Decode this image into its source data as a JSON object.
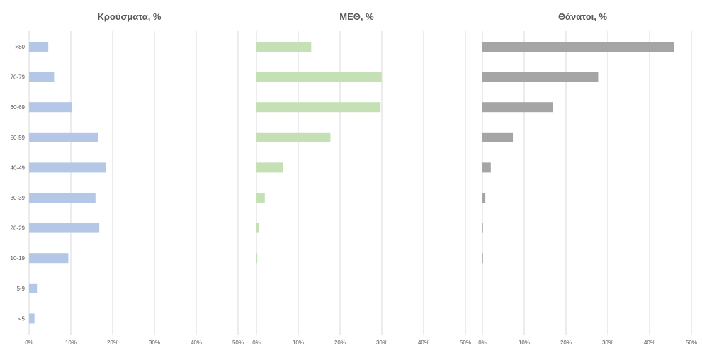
{
  "chart_data": {
    "type": "bar",
    "orientation": "horizontal",
    "categories": [
      ">80",
      "70-79",
      "60-69",
      "50-59",
      "40-49",
      "30-39",
      "20-29",
      "10-19",
      "5-9",
      "<5"
    ],
    "xlim": [
      0,
      50
    ],
    "xticks": [
      "0%",
      "10%",
      "20%",
      "30%",
      "40%",
      "50%"
    ],
    "grid": true,
    "legend": "none",
    "panels": [
      {
        "title": "Κρούσματα, %",
        "color": "#b4c7e7",
        "values": [
          4.6,
          6.0,
          10.2,
          16.5,
          18.4,
          15.9,
          16.8,
          9.4,
          1.9,
          1.3
        ]
      },
      {
        "title": "ΜΕΘ, %",
        "color": "#c5e0b4",
        "values": [
          13.1,
          29.9,
          29.7,
          17.7,
          6.4,
          2.0,
          0.6,
          0.2,
          0.0,
          0.0
        ]
      },
      {
        "title": "Θάνατοι, %",
        "color": "#a5a5a5",
        "values": [
          45.8,
          27.7,
          16.8,
          7.3,
          2.0,
          0.7,
          0.1,
          0.1,
          0.0,
          0.0
        ]
      }
    ]
  }
}
